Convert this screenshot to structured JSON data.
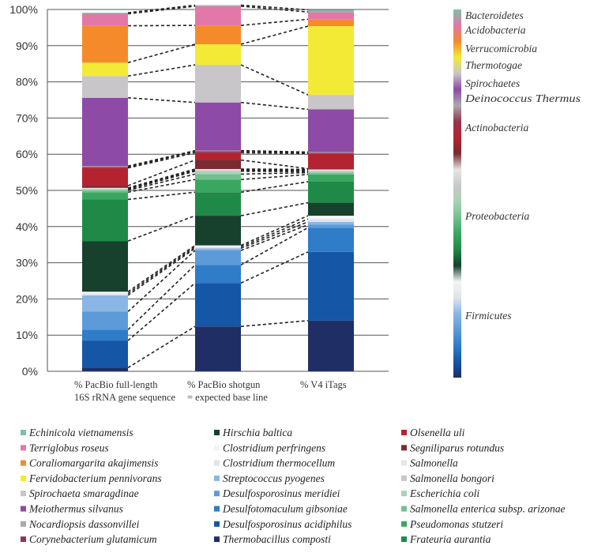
{
  "chart_data": {
    "type": "bar",
    "stacked": true,
    "ylim": [
      0,
      100
    ],
    "yticks": [
      "0%",
      "10%",
      "20%",
      "30%",
      "40%",
      "50%",
      "60%",
      "70%",
      "80%",
      "90%",
      "100%"
    ],
    "grid": true,
    "legend_position": "bottom",
    "categories": [
      [
        "% PacBio full-length",
        "16S rRNA gene sequence"
      ],
      [
        "% PacBio shotgun",
        "= expected base line"
      ],
      [
        "% V4 iTags"
      ]
    ],
    "series": [
      {
        "name": "Thermobacillus composti",
        "color": "#1f2f66",
        "values": [
          1.0,
          12.4,
          14.0
        ]
      },
      {
        "name": "Desulfosporosinus acidiphilus",
        "color": "#1556a6",
        "values": [
          7.5,
          12.0,
          19.0
        ]
      },
      {
        "name": "Desulfotomaculum gibsoniae",
        "color": "#2f7cc8",
        "values": [
          3.0,
          5.0,
          6.7
        ]
      },
      {
        "name": "Desulfosporosinus meridiei",
        "color": "#5c9bd8",
        "values": [
          5.0,
          4.0,
          0.8
        ]
      },
      {
        "name": "Streptococcus pyogenes",
        "color": "#8ab6e6",
        "values": [
          4.5,
          0.6,
          0.8
        ]
      },
      {
        "name": "Clostridium thermocellum",
        "color": "#dfe4ec",
        "values": [
          0.5,
          0.4,
          0.8
        ]
      },
      {
        "name": "Clostridium perfringens",
        "color": "#f4f4f6",
        "values": [
          0.5,
          0.4,
          0.9
        ]
      },
      {
        "name": "Hirschia baltica",
        "color": "#17412c",
        "values": [
          14.0,
          8.2,
          3.6
        ]
      },
      {
        "name": "Frateuria aurantia",
        "color": "#1f8a47",
        "values": [
          11.5,
          6.5,
          5.8
        ]
      },
      {
        "name": "Pseudomonas stutzeri",
        "color": "#3aa760",
        "values": [
          2.0,
          3.5,
          2.0
        ]
      },
      {
        "name": "Salmonella enterica subsp. arizonae",
        "color": "#73c08f",
        "values": [
          0.5,
          1.5,
          0.5
        ]
      },
      {
        "name": "Escherichia coli",
        "color": "#a9d2b6",
        "values": [
          0.3,
          0.8,
          0.3
        ]
      },
      {
        "name": "Salmonella bongori",
        "color": "#c8c8c8",
        "values": [
          0.2,
          0.3,
          0.3
        ]
      },
      {
        "name": "Salmonella",
        "color": "#e6e6e6",
        "values": [
          0.2,
          0.3,
          0.3
        ]
      },
      {
        "name": "Segniliparus rotundus",
        "color": "#7a2a30",
        "values": [
          0.6,
          2.5,
          0.2
        ]
      },
      {
        "name": "Olsenella uli",
        "color": "#b42330",
        "values": [
          4.9,
          2.0,
          4.2
        ]
      },
      {
        "name": "Corynebacterium glutamicum",
        "color": "#93364f",
        "values": [
          0.3,
          0.4,
          0.2
        ]
      },
      {
        "name": "Nocardiopsis dassonvillei",
        "color": "#a9a9a9",
        "values": [
          0.2,
          0.2,
          0.2
        ]
      },
      {
        "name": "Meiothermus silvanus",
        "color": "#8d4aa6",
        "values": [
          18.9,
          13.3,
          11.8
        ]
      },
      {
        "name": "Spirochaeta smaragdinae",
        "color": "#c8c6c9",
        "values": [
          6.0,
          10.4,
          4.0
        ]
      },
      {
        "name": "Fervidobacterium pennivorans",
        "color": "#f2ea35",
        "values": [
          3.7,
          5.7,
          19.0
        ]
      },
      {
        "name": "Coraliomargarita akajimensis",
        "color": "#f58a2b",
        "values": [
          10.2,
          5.2,
          1.9
        ]
      },
      {
        "name": "Terriglobus roseus",
        "color": "#e178a8",
        "values": [
          3.3,
          5.3,
          2.0
        ]
      },
      {
        "name": "Echinicola vietnamensis",
        "color": "#7fc1a7",
        "values": [
          0.3,
          0.3,
          0.6
        ]
      }
    ],
    "phyla_colorbar": [
      {
        "name": "Bacteroidetes",
        "color": "#7fc1a7"
      },
      {
        "name": "Acidobacteria",
        "color": "#e178a8"
      },
      {
        "name": "Verrucomicrobia",
        "color": "#f58a2b"
      },
      {
        "name": "Thermotogae",
        "color": "#f2ea35"
      },
      {
        "name": "Spirochaetes",
        "color": "#c8c6c9"
      },
      {
        "name": "Deinococcus Thermus",
        "color": "#8d4aa6"
      },
      {
        "name": "Actinobacteria",
        "color": "#b42330"
      },
      {
        "name": "Proteobacteria",
        "color": "#1f8a47"
      },
      {
        "name": "Firmicutes",
        "color": "#1556a6"
      }
    ],
    "legend_columns": [
      [
        "Echinicola vietnamensis",
        "Terriglobus roseus",
        "Coraliomargarita akajimensis",
        "Fervidobacterium pennivorans",
        "Spirochaeta smaragdinae",
        "Meiothermus silvanus",
        "Nocardiopsis dassonvillei",
        "Corynebacterium glutamicum"
      ],
      [
        "Hirschia baltica",
        "Clostridium perfringens",
        "Clostridium thermocellum",
        "Streptococcus pyogenes",
        "Desulfosporosinus meridiei",
        "Desulfotomaculum gibsoniae",
        "Desulfosporosinus acidiphilus",
        "Thermobacillus composti"
      ],
      [
        "Olsenella uli",
        "Segniliparus rotundus",
        "Salmonella",
        "Salmonella bongori",
        "Escherichia coli",
        "Salmonella enterica subsp. arizonae",
        "Pseudomonas stutzeri",
        "Frateuria aurantia"
      ]
    ]
  }
}
